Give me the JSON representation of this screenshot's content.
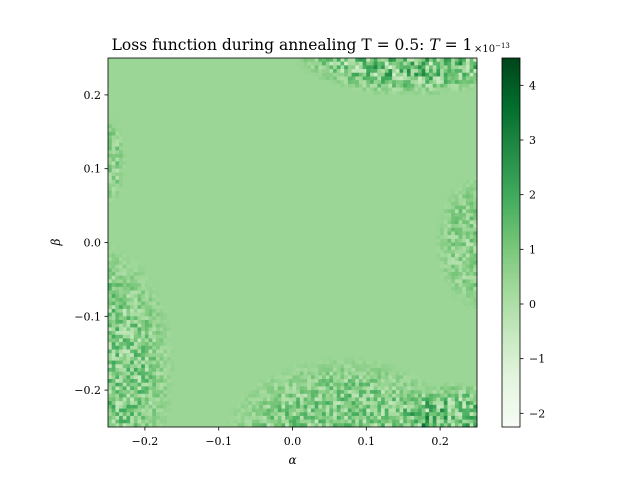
{
  "chart_data": {
    "type": "heatmap",
    "title": "Loss function during annealing T = 0.5: T = 1",
    "title_parts": {
      "lead": "Loss function during annealing T = 0.5: ",
      "math": "T",
      "tail": " = 1"
    },
    "xlabel": "α",
    "ylabel": "β",
    "xlim": [
      -0.25,
      0.25
    ],
    "ylim": [
      -0.25,
      0.25
    ],
    "x_ticks": [
      -0.2,
      -0.1,
      0.0,
      0.1,
      0.2
    ],
    "x_tick_labels": [
      "−0.2",
      "−0.1",
      "0.0",
      "0.1",
      "0.2"
    ],
    "y_ticks": [
      -0.2,
      -0.1,
      0.0,
      0.1,
      0.2
    ],
    "y_tick_labels": [
      "−0.2",
      "−0.1",
      "0.0",
      "0.1",
      "0.2"
    ],
    "grid": false,
    "colormap": "Greens",
    "color_scale_exponent_label": "×10−13",
    "colorbar": {
      "vmin": -2.25,
      "vmax": 4.5,
      "ticks": [
        -2,
        -1,
        0,
        1,
        2,
        3,
        4
      ],
      "tick_labels": [
        "−2",
        "−1",
        "0",
        "1",
        "2",
        "3",
        "4"
      ]
    },
    "grid_resolution": 100,
    "background_value": 0.4,
    "noise_regions": [
      {
        "location": "top-right",
        "center": [
          0.16,
          0.26
        ],
        "radius": [
          0.13,
          0.05
        ],
        "amplitude": 3.8
      },
      {
        "location": "left-middle",
        "center": [
          -0.25,
          0.11
        ],
        "radius": [
          0.02,
          0.05
        ],
        "amplitude": 1.6
      },
      {
        "location": "right-middle",
        "center": [
          0.255,
          0.0
        ],
        "radius": [
          0.05,
          0.075
        ],
        "amplitude": 1.8
      },
      {
        "location": "bottom-left",
        "center": [
          -0.27,
          -0.17
        ],
        "radius": [
          0.09,
          0.14
        ],
        "amplitude": 2.6
      },
      {
        "location": "bottom-center",
        "center": [
          0.07,
          -0.26
        ],
        "radius": [
          0.13,
          0.085
        ],
        "amplitude": 2.4
      },
      {
        "location": "bottom-right",
        "center": [
          0.22,
          -0.24
        ],
        "radius": [
          0.06,
          0.04
        ],
        "amplitude": 3.4
      }
    ]
  }
}
